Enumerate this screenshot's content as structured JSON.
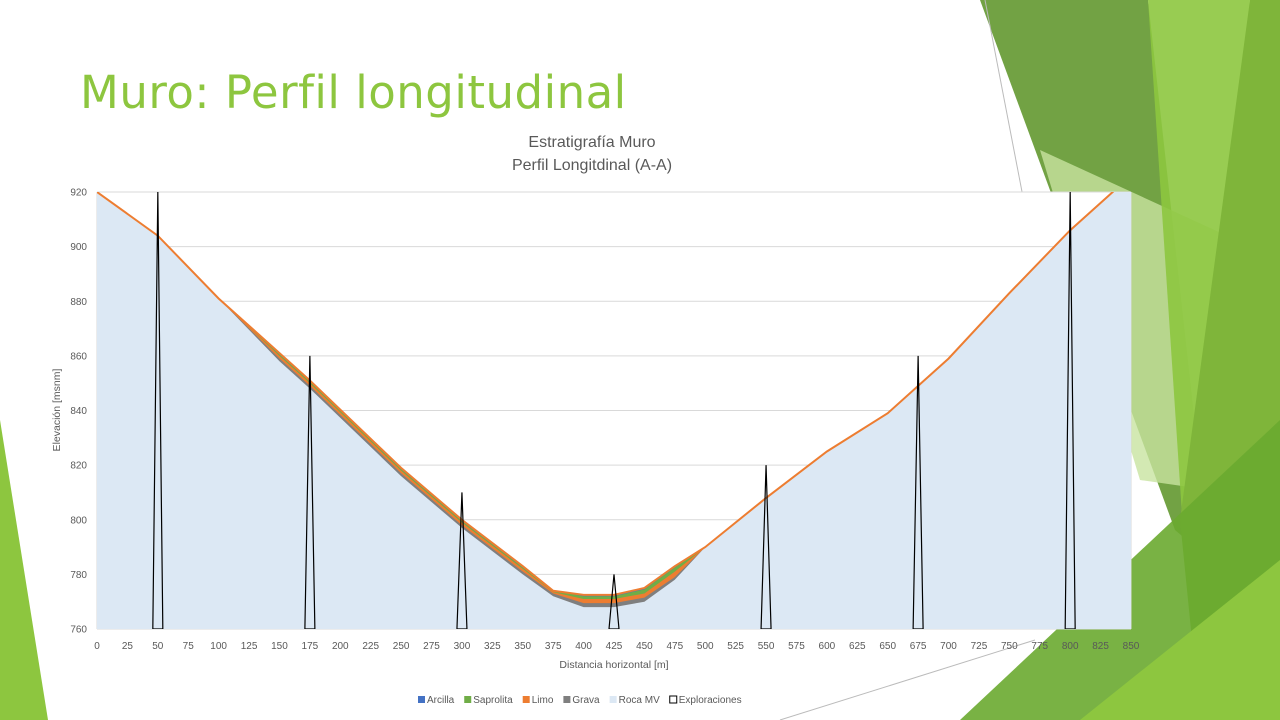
{
  "slide": {
    "title": "Muro: Perfil longitudinal",
    "accent_colors": [
      "#8dc63f",
      "#6a9d3a",
      "#4e8a22",
      "#c8e3a0"
    ]
  },
  "chart_data": {
    "type": "area",
    "title": "Estratigrafía Muro",
    "subtitle": "Perfil Longitdinal (A-A)",
    "xlabel": "Distancia horizontal [m]",
    "ylabel": "Elevación [msnm]",
    "xlim": [
      0,
      850
    ],
    "ylim": [
      760,
      920
    ],
    "x_ticks": [
      0,
      25,
      50,
      75,
      100,
      125,
      150,
      175,
      200,
      225,
      250,
      275,
      300,
      325,
      350,
      375,
      400,
      425,
      450,
      475,
      500,
      525,
      550,
      575,
      600,
      625,
      650,
      675,
      700,
      725,
      750,
      775,
      800,
      825,
      850
    ],
    "y_ticks": [
      760,
      780,
      800,
      820,
      840,
      860,
      880,
      900,
      920
    ],
    "grid": "horizontal",
    "legend_position": "bottom",
    "x": [
      0,
      50,
      100,
      150,
      175,
      250,
      300,
      350,
      375,
      400,
      425,
      450,
      475,
      500,
      550,
      600,
      650,
      700,
      750,
      800,
      850
    ],
    "series": [
      {
        "name": "Roca MV",
        "color": "#dce8f4",
        "values": [
          920,
          904,
          881,
          858,
          848,
          816,
          797,
          780,
          772,
          768,
          768,
          770,
          778,
          790,
          808,
          825,
          839,
          859,
          883,
          906,
          926
        ]
      },
      {
        "name": "Grava",
        "color": "#7f7f7f",
        "values": [
          920,
          904,
          881,
          859,
          849,
          817,
          798,
          781,
          773,
          769.5,
          769.5,
          771.5,
          779,
          790,
          808,
          825,
          839,
          859,
          883,
          906,
          926
        ]
      },
      {
        "name": "Limo",
        "color": "#ed7d31",
        "values": [
          920,
          904,
          881,
          860,
          850,
          818,
          799,
          782,
          773.5,
          771,
          771,
          773,
          781,
          790,
          808,
          825,
          839,
          859,
          883,
          906,
          926
        ]
      },
      {
        "name": "Saprolita",
        "color": "#70ad47",
        "values": [
          920,
          904,
          881,
          860.5,
          850.5,
          818.5,
          799.5,
          782.5,
          774,
          772,
          772,
          774.5,
          782.5,
          790,
          808,
          825,
          839,
          859,
          883,
          906,
          926
        ]
      },
      {
        "name": "Arcilla",
        "color": "#4472c4",
        "values": [
          920,
          904,
          881,
          861,
          851,
          819,
          800,
          783,
          774,
          772.5,
          772.5,
          775,
          783,
          790,
          808,
          825,
          839,
          859,
          883,
          906,
          926
        ]
      }
    ],
    "exploraciones": {
      "name": "Exploraciones",
      "color": "#000000",
      "boreholes": [
        {
          "x": 50,
          "top": 920
        },
        {
          "x": 175,
          "top": 860
        },
        {
          "x": 300,
          "top": 810
        },
        {
          "x": 425,
          "top": 780
        },
        {
          "x": 550,
          "top": 820
        },
        {
          "x": 675,
          "top": 860
        },
        {
          "x": 800,
          "top": 920
        }
      ]
    },
    "legend": [
      {
        "name": "Arcilla",
        "color": "#4472c4",
        "symbol": "square"
      },
      {
        "name": "Saprolita",
        "color": "#70ad47",
        "symbol": "square"
      },
      {
        "name": "Limo",
        "color": "#ed7d31",
        "symbol": "square"
      },
      {
        "name": "Grava",
        "color": "#7f7f7f",
        "symbol": "square"
      },
      {
        "name": "Roca MV",
        "color": "#dce8f4",
        "symbol": "square"
      },
      {
        "name": "Exploraciones",
        "color": "#000000",
        "symbol": "outline"
      }
    ]
  }
}
